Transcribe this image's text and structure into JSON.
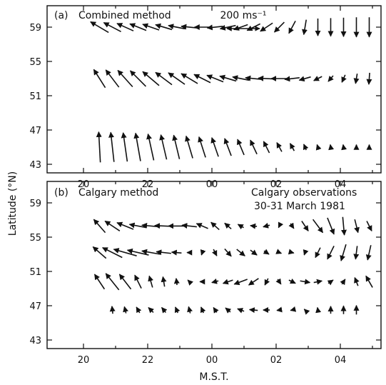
{
  "chart_data": [
    {
      "type": "vector-field",
      "panel_label": "(a)",
      "title": "Combined method",
      "xlabel": "M.S.T.",
      "ylabel": "Latitude (°N)",
      "ylim": [
        42,
        61.5
      ],
      "xlim": [
        20.8,
        29.4
      ],
      "yticks": [
        43,
        47,
        51,
        55,
        59
      ],
      "xticks": [
        20,
        22,
        24,
        26,
        28
      ],
      "x_tick_labels": [
        "20",
        "22",
        "00",
        "02",
        "04"
      ],
      "scale_label": "200 ms⁻¹",
      "scale_ms": 200,
      "rows": [
        {
          "lat": 59,
          "time": [
            20.5,
            20.9,
            21.3,
            21.7,
            22.1,
            22.5,
            22.9,
            23.3,
            23.7,
            24.1,
            24.5,
            24.9,
            25.3,
            25.7,
            26.1,
            26.5,
            26.9,
            27.3,
            27.7,
            28.1,
            28.5,
            28.9
          ],
          "u": [
            -110,
            -105,
            -100,
            -100,
            -100,
            -100,
            -100,
            -100,
            -95,
            -95,
            -95,
            -85,
            -80,
            -75,
            -60,
            -40,
            -15,
            0,
            0,
            0,
            0,
            0
          ],
          "v": [
            65,
            55,
            45,
            40,
            35,
            30,
            20,
            10,
            0,
            -10,
            -20,
            -30,
            -40,
            -50,
            -60,
            -75,
            -90,
            -105,
            -110,
            -115,
            -120,
            -120
          ]
        },
        {
          "lat": 53,
          "time": [
            20.5,
            20.9,
            21.3,
            21.7,
            22.1,
            22.5,
            22.9,
            23.3,
            23.7,
            24.1,
            24.5,
            24.9,
            25.3,
            25.7,
            26.1,
            26.5,
            26.9,
            27.3,
            27.7,
            28.1,
            28.5,
            28.9
          ],
          "u": [
            -70,
            -80,
            -90,
            -95,
            -100,
            -100,
            -100,
            -100,
            -100,
            -100,
            -100,
            -100,
            -100,
            -100,
            -100,
            -90,
            -70,
            -50,
            -30,
            -20,
            -10,
            -5
          ],
          "v": [
            110,
            105,
            100,
            95,
            85,
            75,
            70,
            60,
            50,
            40,
            30,
            20,
            10,
            5,
            0,
            -10,
            -20,
            -25,
            -35,
            -45,
            -60,
            -70
          ]
        },
        {
          "lat": 45,
          "time": [
            20.5,
            20.9,
            21.3,
            21.7,
            22.1,
            22.5,
            22.9,
            23.3,
            23.7,
            24.1,
            24.5,
            24.9,
            25.3,
            25.7,
            26.1,
            26.5,
            26.9,
            27.3,
            27.7,
            28.1,
            28.5,
            28.9
          ],
          "u": [
            -10,
            -20,
            -25,
            -30,
            -35,
            -35,
            -35,
            -40,
            -40,
            -40,
            -40,
            -40,
            -40,
            -35,
            -30,
            -25,
            -15,
            -10,
            -5,
            -5,
            0,
            0
          ],
          "v": [
            185,
            180,
            175,
            170,
            160,
            150,
            145,
            135,
            125,
            115,
            105,
            95,
            85,
            70,
            55,
            45,
            35,
            30,
            30,
            30,
            30,
            30
          ]
        }
      ]
    },
    {
      "type": "vector-field",
      "panel_label": "(b)",
      "title": "Calgary method",
      "annotation": [
        "Calgary observations",
        "30-31 March 1981"
      ],
      "xlabel": "M.S.T.",
      "ylabel": "Latitude (°N)",
      "ylim": [
        42,
        61.5
      ],
      "xlim": [
        20.8,
        29.4
      ],
      "yticks": [
        43,
        47,
        51,
        55,
        59
      ],
      "xticks": [
        20,
        22,
        24,
        26,
        28
      ],
      "x_tick_labels": [
        "20",
        "22",
        "00",
        "02",
        "04"
      ],
      "rows": [
        {
          "lat": 56.3,
          "time": [
            20.5,
            20.9,
            21.3,
            21.7,
            22.1,
            22.5,
            22.9,
            23.3,
            23.7,
            24.1,
            24.5,
            24.9,
            25.3,
            25.7,
            26.1,
            26.5,
            26.9,
            27.3,
            27.7,
            28.1,
            28.5,
            28.9
          ],
          "u": [
            -70,
            -90,
            -100,
            -105,
            -110,
            -110,
            -100,
            -90,
            -70,
            -50,
            -40,
            -35,
            -40,
            -40,
            -10,
            20,
            40,
            60,
            40,
            10,
            20,
            30
          ],
          "v": [
            80,
            60,
            40,
            20,
            10,
            5,
            0,
            10,
            30,
            45,
            35,
            20,
            5,
            -10,
            -20,
            -30,
            -60,
            -80,
            -100,
            -110,
            -80,
            -60
          ]
        },
        {
          "lat": 53.2,
          "time": [
            20.5,
            20.9,
            21.3,
            21.7,
            22.1,
            22.5,
            22.9,
            23.3,
            23.7,
            24.1,
            24.5,
            24.9,
            25.3,
            25.7,
            26.1,
            26.5,
            26.9,
            27.3,
            27.7,
            28.1,
            28.5,
            28.9
          ],
          "u": [
            -80,
            -120,
            -140,
            -130,
            -110,
            -90,
            -60,
            -30,
            -10,
            20,
            40,
            50,
            40,
            30,
            25,
            20,
            -10,
            -30,
            -40,
            -30,
            -10,
            -20
          ],
          "v": [
            70,
            60,
            40,
            30,
            20,
            10,
            5,
            0,
            -30,
            -40,
            -45,
            -40,
            -30,
            -20,
            -10,
            -5,
            -30,
            -60,
            -80,
            -100,
            -80,
            -90
          ]
        },
        {
          "lat": 49.8,
          "time": [
            20.5,
            20.9,
            21.3,
            21.7,
            22.1,
            22.5,
            22.9,
            23.3,
            23.7,
            24.1,
            24.5,
            24.9,
            25.3,
            25.7,
            26.1,
            26.5,
            26.9,
            27.3,
            27.7,
            28.1,
            28.5,
            28.9
          ],
          "u": [
            -60,
            -80,
            -70,
            -40,
            -20,
            -10,
            -5,
            -20,
            -30,
            -40,
            -60,
            -80,
            -60,
            -20,
            20,
            40,
            60,
            50,
            30,
            20,
            -20,
            -40
          ],
          "v": [
            90,
            100,
            90,
            80,
            70,
            60,
            40,
            20,
            0,
            -10,
            -20,
            -30,
            -40,
            -40,
            -30,
            -20,
            -10,
            10,
            20,
            30,
            50,
            70
          ]
        },
        {
          "lat": 46.5,
          "time": [
            20.9,
            21.3,
            21.7,
            22.1,
            22.5,
            22.9,
            23.3,
            23.7,
            24.1,
            24.5,
            24.9,
            25.3,
            25.7,
            26.1,
            26.5,
            26.9,
            27.3,
            27.7,
            28.1,
            28.5
          ],
          "u": [
            -5,
            -10,
            -20,
            -30,
            -25,
            -15,
            -10,
            -15,
            -20,
            -30,
            -40,
            -50,
            -40,
            -30,
            -20,
            -10,
            -5,
            0,
            0,
            0
          ],
          "v": [
            45,
            40,
            35,
            30,
            30,
            35,
            40,
            35,
            30,
            25,
            15,
            5,
            0,
            -5,
            -5,
            10,
            30,
            45,
            50,
            55
          ]
        }
      ]
    }
  ]
}
